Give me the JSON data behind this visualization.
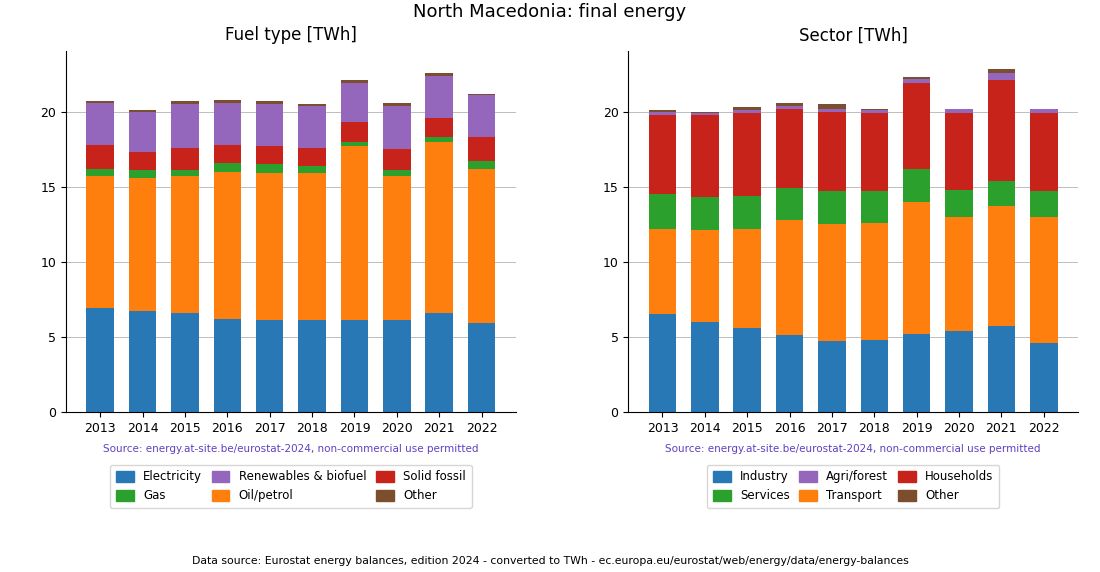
{
  "years": [
    2013,
    2014,
    2015,
    2016,
    2017,
    2018,
    2019,
    2020,
    2021,
    2022
  ],
  "title": "North Macedonia: final energy",
  "footer": "Data source: Eurostat energy balances, edition 2024 - converted to TWh - ec.europa.eu/eurostat/web/energy/data/energy-balances",
  "source_text": "Source: energy.at-site.be/eurostat-2024, non-commercial use permitted",
  "fuel_title": "Fuel type [TWh]",
  "fuel_electricity": [
    6.9,
    6.7,
    6.6,
    6.2,
    6.1,
    6.1,
    6.1,
    6.1,
    6.6,
    5.9
  ],
  "fuel_oil_petrol": [
    8.8,
    8.9,
    9.1,
    9.8,
    9.8,
    9.8,
    11.6,
    9.6,
    11.4,
    10.3
  ],
  "fuel_gas": [
    0.5,
    0.5,
    0.4,
    0.6,
    0.6,
    0.5,
    0.3,
    0.4,
    0.3,
    0.5
  ],
  "fuel_solid_fossil": [
    1.6,
    1.2,
    1.5,
    1.2,
    1.2,
    1.2,
    1.3,
    1.4,
    1.3,
    1.6
  ],
  "fuel_renewables": [
    2.8,
    2.7,
    2.9,
    2.8,
    2.8,
    2.8,
    2.6,
    2.9,
    2.8,
    2.8
  ],
  "fuel_other": [
    0.1,
    0.1,
    0.2,
    0.2,
    0.2,
    0.1,
    0.2,
    0.2,
    0.2,
    0.1
  ],
  "sector_title": "Sector [TWh]",
  "sector_industry": [
    6.5,
    6.0,
    5.6,
    5.1,
    4.7,
    4.8,
    5.2,
    5.4,
    5.7,
    4.6
  ],
  "sector_transport": [
    5.7,
    6.1,
    6.6,
    7.7,
    7.8,
    7.8,
    8.8,
    7.6,
    8.0,
    8.4
  ],
  "sector_services": [
    2.3,
    2.2,
    2.2,
    2.1,
    2.2,
    2.1,
    2.2,
    1.8,
    1.7,
    1.7
  ],
  "sector_households": [
    5.3,
    5.5,
    5.5,
    5.3,
    5.3,
    5.2,
    5.7,
    5.1,
    6.7,
    5.2
  ],
  "sector_agri_forest": [
    0.2,
    0.1,
    0.2,
    0.2,
    0.2,
    0.2,
    0.3,
    0.3,
    0.5,
    0.3
  ],
  "sector_other": [
    0.1,
    0.1,
    0.2,
    0.2,
    0.3,
    0.1,
    0.1,
    0.0,
    0.2,
    0.0
  ],
  "color_electricity": "#2878b5",
  "color_oil_petrol": "#ff7f0e",
  "color_gas": "#2ca02c",
  "color_solid_fossil": "#c8231a",
  "color_renewables": "#9467bd",
  "color_other_fuel": "#7b4e2d",
  "color_industry": "#2878b5",
  "color_transport": "#ff7f0e",
  "color_services": "#2ca02c",
  "color_households": "#c8231a",
  "color_agri_forest": "#9467bd",
  "color_other_sector": "#7b4e2d",
  "source_color": "#6040c0",
  "ylim": [
    0,
    24
  ]
}
